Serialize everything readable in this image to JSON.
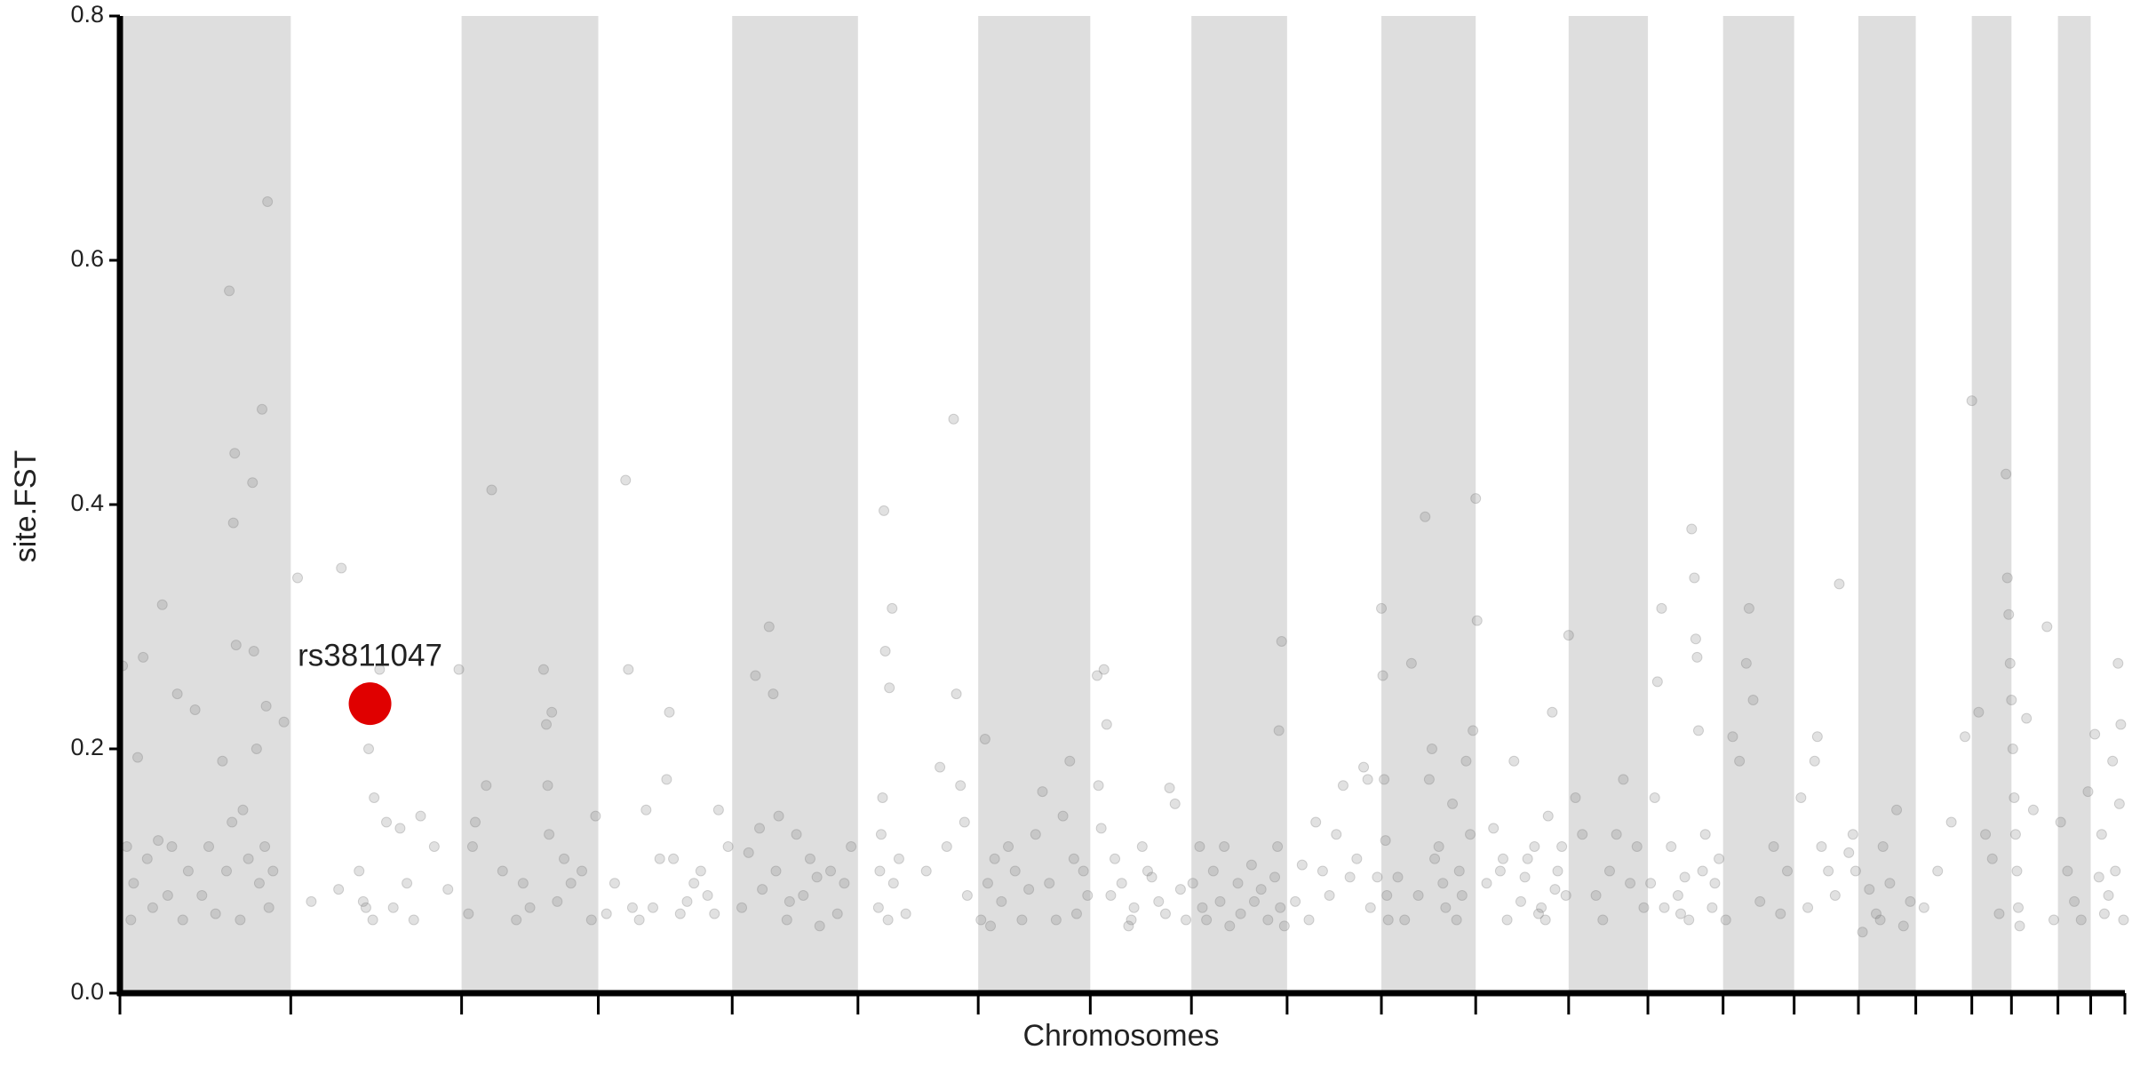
{
  "chart_data": {
    "type": "manhattan",
    "y_label": "site.FST",
    "x_label": "Chromosomes",
    "xlim": [
      0,
      1467
    ],
    "ylim": [
      0,
      0.8
    ],
    "yticks": [
      {
        "value": 0,
        "label": "0.0"
      },
      0.2,
      0.4,
      0.6,
      0.8
    ],
    "xticks": [
      0,
      125,
      250,
      350,
      448,
      540,
      628,
      710,
      784,
      854,
      923,
      992,
      1060,
      1118,
      1173,
      1225,
      1272,
      1314,
      1355,
      1384,
      1418,
      1442,
      1467
    ],
    "xtick_labels": false,
    "alternate_bands": true,
    "band_color": "#dedede",
    "color": "#777777",
    "x": [
      2,
      5,
      8,
      10,
      13,
      17,
      20,
      24,
      28,
      31,
      35,
      38,
      42,
      46,
      50,
      55,
      60,
      65,
      70,
      75,
      78,
      80,
      82,
      83,
      84,
      85,
      88,
      90,
      94,
      97,
      98,
      100,
      102,
      104,
      106,
      107,
      108,
      109,
      112,
      120,
      130,
      140,
      160,
      162,
      175,
      180,
      185,
      190,
      195,
      200,
      205,
      210,
      220,
      230,
      240,
      248,
      182,
      186,
      178,
      215,
      255,
      260,
      268,
      272,
      280,
      290,
      300,
      310,
      312,
      313,
      314,
      316,
      320,
      330,
      338,
      345,
      348,
      258,
      295,
      325,
      356,
      370,
      372,
      375,
      385,
      390,
      400,
      405,
      410,
      420,
      430,
      438,
      445,
      362,
      380,
      395,
      415,
      425,
      435,
      402,
      455,
      460,
      465,
      470,
      475,
      478,
      480,
      482,
      488,
      495,
      500,
      505,
      512,
      520,
      530,
      535,
      468,
      490,
      510,
      525,
      555,
      556,
      557,
      558,
      559,
      560,
      562,
      563,
      565,
      566,
      575,
      590,
      600,
      610,
      612,
      615,
      618,
      620,
      570,
      605,
      630,
      633,
      635,
      640,
      650,
      660,
      670,
      680,
      690,
      695,
      700,
      705,
      708,
      645,
      655,
      665,
      675,
      685,
      698,
      637,
      715,
      720,
      722,
      716,
      718,
      725,
      740,
      755,
      768,
      772,
      780,
      760,
      748,
      733,
      728,
      742,
      776,
      765,
      752,
      738,
      785,
      790,
      795,
      800,
      805,
      820,
      835,
      845,
      850,
      848,
      847,
      849,
      852,
      812,
      828,
      840,
      792,
      808,
      818,
      830,
      860,
      870,
      880,
      890,
      900,
      910,
      920,
      923,
      924,
      925,
      926,
      927,
      928,
      875,
      885,
      895,
      905,
      915,
      865,
      913,
      935,
      945,
      955,
      960,
      965,
      970,
      975,
      980,
      985,
      990,
      992,
      993,
      940,
      950,
      958,
      968,
      978,
      988,
      962,
      982,
      1000,
      1010,
      1020,
      1030,
      1040,
      1045,
      1048,
      1050,
      1055,
      1060,
      1005,
      1015,
      1025,
      1035,
      1043,
      1052,
      1058,
      1012,
      1028,
      1038,
      1065,
      1070,
      1080,
      1090,
      1100,
      1105,
      1110,
      1115,
      1085,
      1095,
      1120,
      1125,
      1128,
      1130,
      1140,
      1145,
      1150,
      1152,
      1153,
      1155,
      1160,
      1165,
      1170,
      1135,
      1148,
      1158,
      1154,
      1142,
      1167,
      1123,
      1175,
      1180,
      1185,
      1190,
      1192,
      1195,
      1200,
      1210,
      1220,
      1215,
      1230,
      1240,
      1242,
      1245,
      1250,
      1258,
      1265,
      1268,
      1235,
      1255,
      1275,
      1280,
      1285,
      1290,
      1295,
      1300,
      1305,
      1310,
      1270,
      1288,
      1320,
      1330,
      1340,
      1350,
      1355,
      1360,
      1365,
      1370,
      1375,
      1380,
      1381,
      1382,
      1383,
      1384,
      1385,
      1386,
      1387,
      1388,
      1389,
      1390,
      1395,
      1400,
      1410,
      1415,
      1420,
      1425,
      1430,
      1435,
      1440,
      1445,
      1450,
      1455,
      1458,
      1460,
      1462,
      1464,
      1466,
      1448,
      1452,
      1463
    ],
    "values": [
      0.268,
      0.12,
      0.06,
      0.09,
      0.193,
      0.275,
      0.11,
      0.07,
      0.125,
      0.318,
      0.08,
      0.12,
      0.245,
      0.06,
      0.1,
      0.232,
      0.08,
      0.12,
      0.065,
      0.19,
      0.1,
      0.575,
      0.14,
      0.385,
      0.442,
      0.285,
      0.06,
      0.15,
      0.11,
      0.418,
      0.28,
      0.2,
      0.09,
      0.478,
      0.12,
      0.235,
      0.648,
      0.07,
      0.1,
      0.222,
      0.34,
      0.075,
      0.085,
      0.348,
      0.1,
      0.07,
      0.06,
      0.265,
      0.14,
      0.07,
      0.135,
      0.09,
      0.145,
      0.12,
      0.085,
      0.265,
      0.2,
      0.16,
      0.075,
      0.06,
      0.065,
      0.14,
      0.17,
      0.412,
      0.1,
      0.06,
      0.07,
      0.265,
      0.22,
      0.17,
      0.13,
      0.23,
      0.075,
      0.09,
      0.1,
      0.06,
      0.145,
      0.12,
      0.09,
      0.11,
      0.065,
      0.42,
      0.265,
      0.07,
      0.15,
      0.07,
      0.175,
      0.11,
      0.065,
      0.09,
      0.08,
      0.15,
      0.12,
      0.09,
      0.06,
      0.11,
      0.075,
      0.1,
      0.065,
      0.23,
      0.07,
      0.115,
      0.26,
      0.085,
      0.3,
      0.245,
      0.1,
      0.145,
      0.06,
      0.13,
      0.08,
      0.11,
      0.055,
      0.1,
      0.09,
      0.12,
      0.135,
      0.075,
      0.095,
      0.065,
      0.07,
      0.1,
      0.13,
      0.16,
      0.395,
      0.28,
      0.06,
      0.25,
      0.315,
      0.09,
      0.065,
      0.1,
      0.185,
      0.47,
      0.245,
      0.17,
      0.14,
      0.08,
      0.11,
      0.12,
      0.06,
      0.208,
      0.09,
      0.11,
      0.12,
      0.06,
      0.13,
      0.09,
      0.145,
      0.19,
      0.065,
      0.1,
      0.08,
      0.075,
      0.1,
      0.085,
      0.165,
      0.06,
      0.11,
      0.055,
      0.26,
      0.265,
      0.22,
      0.17,
      0.135,
      0.08,
      0.06,
      0.095,
      0.168,
      0.155,
      0.06,
      0.075,
      0.12,
      0.09,
      0.11,
      0.07,
      0.085,
      0.065,
      0.1,
      0.055,
      0.09,
      0.12,
      0.06,
      0.1,
      0.075,
      0.065,
      0.085,
      0.095,
      0.288,
      0.215,
      0.12,
      0.07,
      0.055,
      0.055,
      0.105,
      0.06,
      0.07,
      0.12,
      0.09,
      0.075,
      0.075,
      0.06,
      0.1,
      0.13,
      0.095,
      0.185,
      0.095,
      0.315,
      0.26,
      0.175,
      0.125,
      0.08,
      0.06,
      0.14,
      0.08,
      0.17,
      0.11,
      0.07,
      0.105,
      0.175,
      0.095,
      0.27,
      0.39,
      0.2,
      0.12,
      0.07,
      0.155,
      0.1,
      0.19,
      0.215,
      0.405,
      0.305,
      0.06,
      0.08,
      0.175,
      0.09,
      0.06,
      0.13,
      0.11,
      0.08,
      0.09,
      0.1,
      0.19,
      0.11,
      0.07,
      0.145,
      0.23,
      0.085,
      0.12,
      0.293,
      0.135,
      0.06,
      0.075,
      0.12,
      0.06,
      0.1,
      0.08,
      0.11,
      0.095,
      0.065,
      0.16,
      0.13,
      0.08,
      0.1,
      0.175,
      0.09,
      0.12,
      0.07,
      0.06,
      0.13,
      0.09,
      0.255,
      0.315,
      0.07,
      0.08,
      0.095,
      0.38,
      0.34,
      0.29,
      0.215,
      0.13,
      0.07,
      0.11,
      0.12,
      0.06,
      0.1,
      0.275,
      0.065,
      0.09,
      0.16,
      0.06,
      0.21,
      0.19,
      0.27,
      0.315,
      0.24,
      0.075,
      0.12,
      0.1,
      0.065,
      0.16,
      0.19,
      0.21,
      0.12,
      0.1,
      0.335,
      0.115,
      0.13,
      0.07,
      0.08,
      0.05,
      0.085,
      0.065,
      0.12,
      0.09,
      0.15,
      0.055,
      0.075,
      0.1,
      0.06,
      0.07,
      0.1,
      0.14,
      0.21,
      0.485,
      0.23,
      0.13,
      0.11,
      0.065,
      0.425,
      0.34,
      0.31,
      0.27,
      0.24,
      0.2,
      0.16,
      0.13,
      0.1,
      0.07,
      0.055,
      0.225,
      0.15,
      0.3,
      0.06,
      0.14,
      0.1,
      0.075,
      0.06,
      0.165,
      0.212,
      0.13,
      0.08,
      0.19,
      0.1,
      0.27,
      0.22,
      0.06,
      0.095,
      0.065,
      0.155
    ],
    "highlight": {
      "label": "rs3811047",
      "x": 183,
      "value": 0.237,
      "color": "#e00000"
    }
  }
}
